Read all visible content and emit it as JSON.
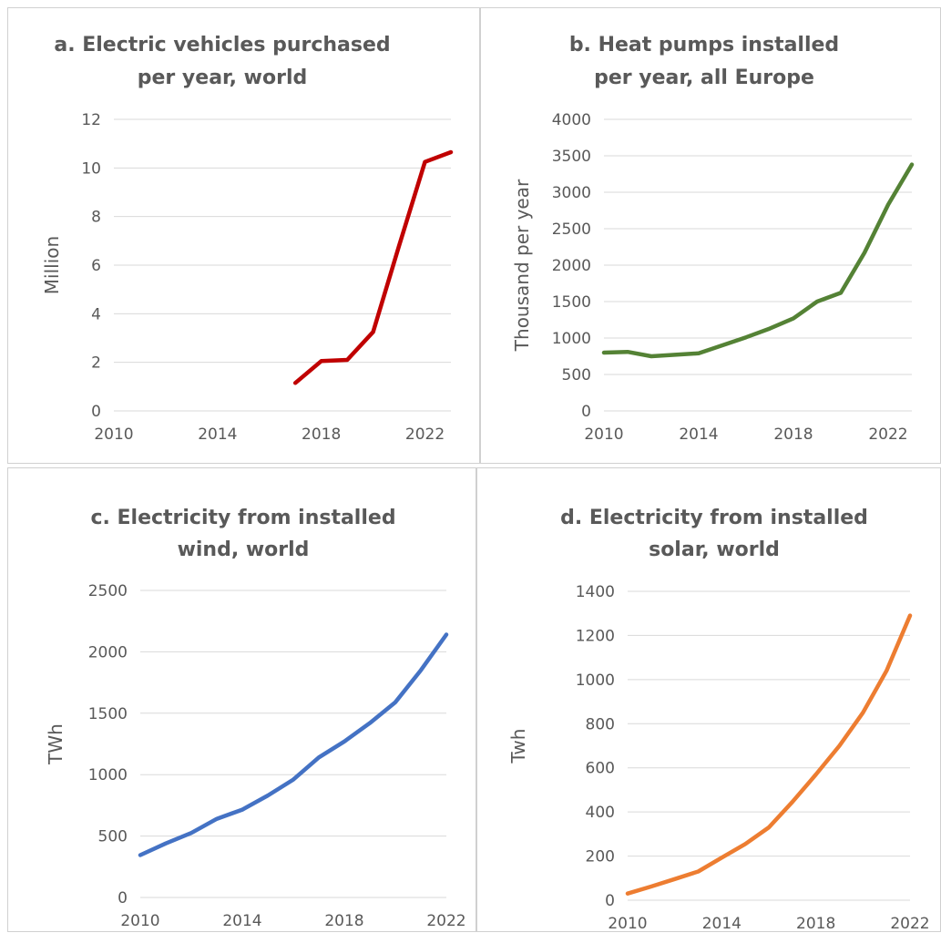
{
  "chart_data": [
    {
      "type": "line",
      "title_lines": [
        "a. Electric vehicles purchased",
        "per year, world"
      ],
      "ylabel": "Million",
      "xlabel": "",
      "ylim": [
        0,
        12
      ],
      "yticks": [
        0,
        2,
        4,
        6,
        8,
        10,
        12
      ],
      "xlim": [
        2010,
        2023
      ],
      "xticks": [
        2010,
        2014,
        2018,
        2022
      ],
      "grid": true,
      "color": "#C00000",
      "series": [
        {
          "x": [
            2017,
            2018,
            2019,
            2020,
            2021,
            2022,
            2023
          ],
          "y": [
            1.15,
            2.05,
            2.1,
            3.25,
            6.8,
            10.25,
            10.65
          ]
        }
      ]
    },
    {
      "type": "line",
      "title_lines": [
        "b. Heat pumps installed",
        "per year, all Europe"
      ],
      "ylabel": "Thousand per year",
      "xlabel": "",
      "ylim": [
        0,
        4000
      ],
      "yticks": [
        0,
        500,
        1000,
        1500,
        2000,
        2500,
        3000,
        3500,
        4000
      ],
      "xlim": [
        2010,
        2023
      ],
      "xticks": [
        2010,
        2014,
        2018,
        2022
      ],
      "grid": true,
      "color": "#548235",
      "series": [
        {
          "x": [
            2010,
            2011,
            2012,
            2013,
            2014,
            2015,
            2016,
            2017,
            2018,
            2019,
            2020,
            2021,
            2022,
            2023
          ],
          "y": [
            800,
            810,
            750,
            770,
            790,
            900,
            1010,
            1130,
            1270,
            1500,
            1620,
            2170,
            2830,
            3380
          ]
        }
      ]
    },
    {
      "type": "line",
      "title_lines": [
        "c. Electricity from installed",
        "wind, world"
      ],
      "ylabel": "TWh",
      "xlabel": "",
      "ylim": [
        0,
        2500
      ],
      "yticks": [
        0,
        500,
        1000,
        1500,
        2000,
        2500
      ],
      "xlim": [
        2010,
        2022
      ],
      "xticks": [
        2010,
        2014,
        2018,
        2022
      ],
      "grid": true,
      "color": "#4472C4",
      "series": [
        {
          "x": [
            2010,
            2011,
            2012,
            2013,
            2014,
            2015,
            2016,
            2017,
            2018,
            2019,
            2020,
            2021,
            2022
          ],
          "y": [
            345,
            440,
            525,
            640,
            715,
            830,
            960,
            1140,
            1270,
            1420,
            1590,
            1850,
            2140
          ]
        }
      ]
    },
    {
      "type": "line",
      "title_lines": [
        "d. Electricity from installed",
        "solar, world"
      ],
      "ylabel": "Twh",
      "xlabel": "",
      "ylim": [
        0,
        1400
      ],
      "yticks": [
        0,
        200,
        400,
        600,
        800,
        1000,
        1200,
        1400
      ],
      "xlim": [
        2010,
        2022
      ],
      "xticks": [
        2010,
        2014,
        2018,
        2022
      ],
      "grid": true,
      "color": "#ED7D31",
      "series": [
        {
          "x": [
            2010,
            2011,
            2012,
            2013,
            2014,
            2015,
            2016,
            2017,
            2018,
            2019,
            2020,
            2021,
            2022
          ],
          "y": [
            30,
            62,
            96,
            130,
            193,
            255,
            330,
            445,
            570,
            700,
            850,
            1040,
            1290
          ]
        }
      ]
    }
  ]
}
